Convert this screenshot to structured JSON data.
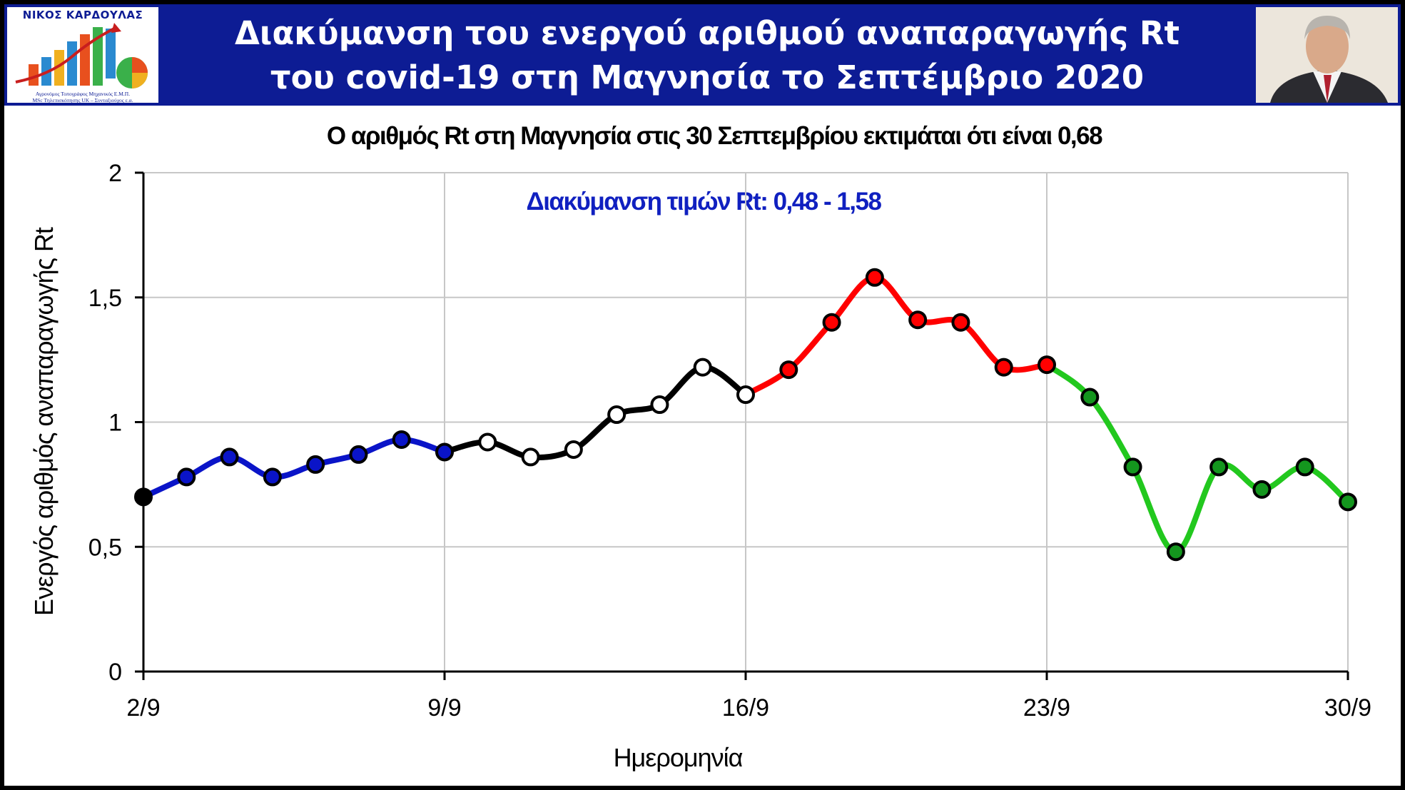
{
  "header": {
    "logo_title": "ΝΙΚΟΣ ΚΑΡΔΟΥΛΑΣ",
    "logo_subtitle_1": "Αγρονόμος Τοπογράφος Μηχανικός Ε.Μ.Π.",
    "logo_subtitle_2": "MSc Τηλεπισκόπησης UK – Συνταξιούχος ε.α.",
    "title_line1": "Διακύμανση του ενεργού αριθμού αναπαραγωγής Rt",
    "title_line2": "του covid-19 στη Μαγνησία το Σεπτέμβριο 2020",
    "colors": {
      "background": "#0d1c94",
      "text": "#ffffff"
    }
  },
  "chart_data": {
    "type": "line",
    "title": "Ο αριθμός Rt στη Μαγνησία στις 30 Σεπτεμβρίου εκτιμάται ότι είναι 0,68",
    "annotation": "Διακύμανση τιμών Rt: 0,48 - 1,58",
    "ylabel": "Ενεργός αριθμός αναπαραγωγής Rt",
    "xlabel": "Ημερομηνία",
    "ylim": [
      0,
      2
    ],
    "yticks": [
      0,
      0.5,
      1,
      1.5,
      2
    ],
    "ytick_labels": [
      "0",
      "0,5",
      "1",
      "1,5",
      "2"
    ],
    "xlim": [
      "2/9",
      "30/9"
    ],
    "xticks": [
      "2/9",
      "9/9",
      "16/9",
      "23/9",
      "30/9"
    ],
    "grid": true,
    "x": [
      2,
      3,
      4,
      5,
      6,
      7,
      8,
      9,
      10,
      11,
      12,
      13,
      14,
      15,
      16,
      17,
      18,
      19,
      20,
      21,
      22,
      23,
      24,
      25,
      26,
      27,
      28,
      29,
      30
    ],
    "values": [
      0.7,
      0.78,
      0.86,
      0.78,
      0.83,
      0.87,
      0.93,
      0.88,
      0.92,
      0.86,
      0.89,
      1.03,
      1.07,
      1.22,
      1.11,
      1.21,
      1.4,
      1.58,
      1.41,
      1.4,
      1.22,
      1.23,
      1.1,
      0.82,
      0.48,
      0.82,
      0.73,
      0.82,
      0.68
    ],
    "series": [
      {
        "segment": "blue",
        "from_day": 2,
        "to_day": 9,
        "line_color": "#0a14c8",
        "marker_color": "#0a14c8"
      },
      {
        "segment": "black",
        "from_day": 9,
        "to_day": 16,
        "line_color": "#000000",
        "marker_color": "#ffffff"
      },
      {
        "segment": "red",
        "from_day": 16,
        "to_day": 23,
        "line_color": "#ff0000",
        "marker_color": "#ff0000"
      },
      {
        "segment": "green",
        "from_day": 23,
        "to_day": 30,
        "line_color": "#22c81e",
        "marker_color": "#14961e"
      }
    ],
    "first_marker_color": "#000000",
    "annotation_color": "#1020c0"
  }
}
